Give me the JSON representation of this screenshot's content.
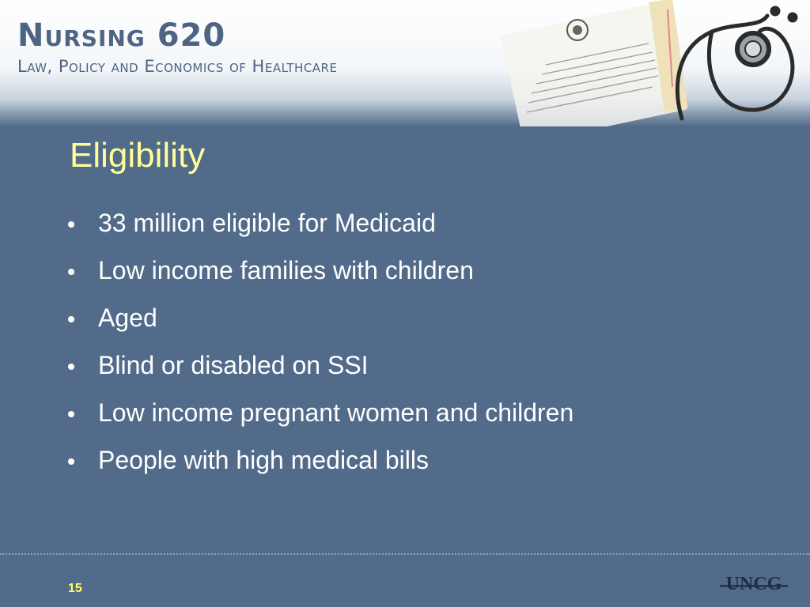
{
  "header": {
    "course_title": "Nursing 620",
    "course_subtitle": "Law, Policy and Economics of Healthcare"
  },
  "slide": {
    "title": "Eligibility",
    "bullets": [
      "33 million eligible for Medicaid",
      "Low income families with children",
      "Aged",
      "Blind or disabled on SSI",
      "Low income pregnant women and children",
      "People with high medical bills"
    ]
  },
  "footer": {
    "page_number": "15",
    "logo_text": "UNCG"
  },
  "colors": {
    "background": "#526b8a",
    "title": "#ffff99",
    "body_text": "#ffffff",
    "header_text": "#4e6484",
    "page_number": "#ffff66"
  },
  "icons": [
    "document-seal-icon",
    "stethoscope-icon",
    "uncg-logo"
  ]
}
